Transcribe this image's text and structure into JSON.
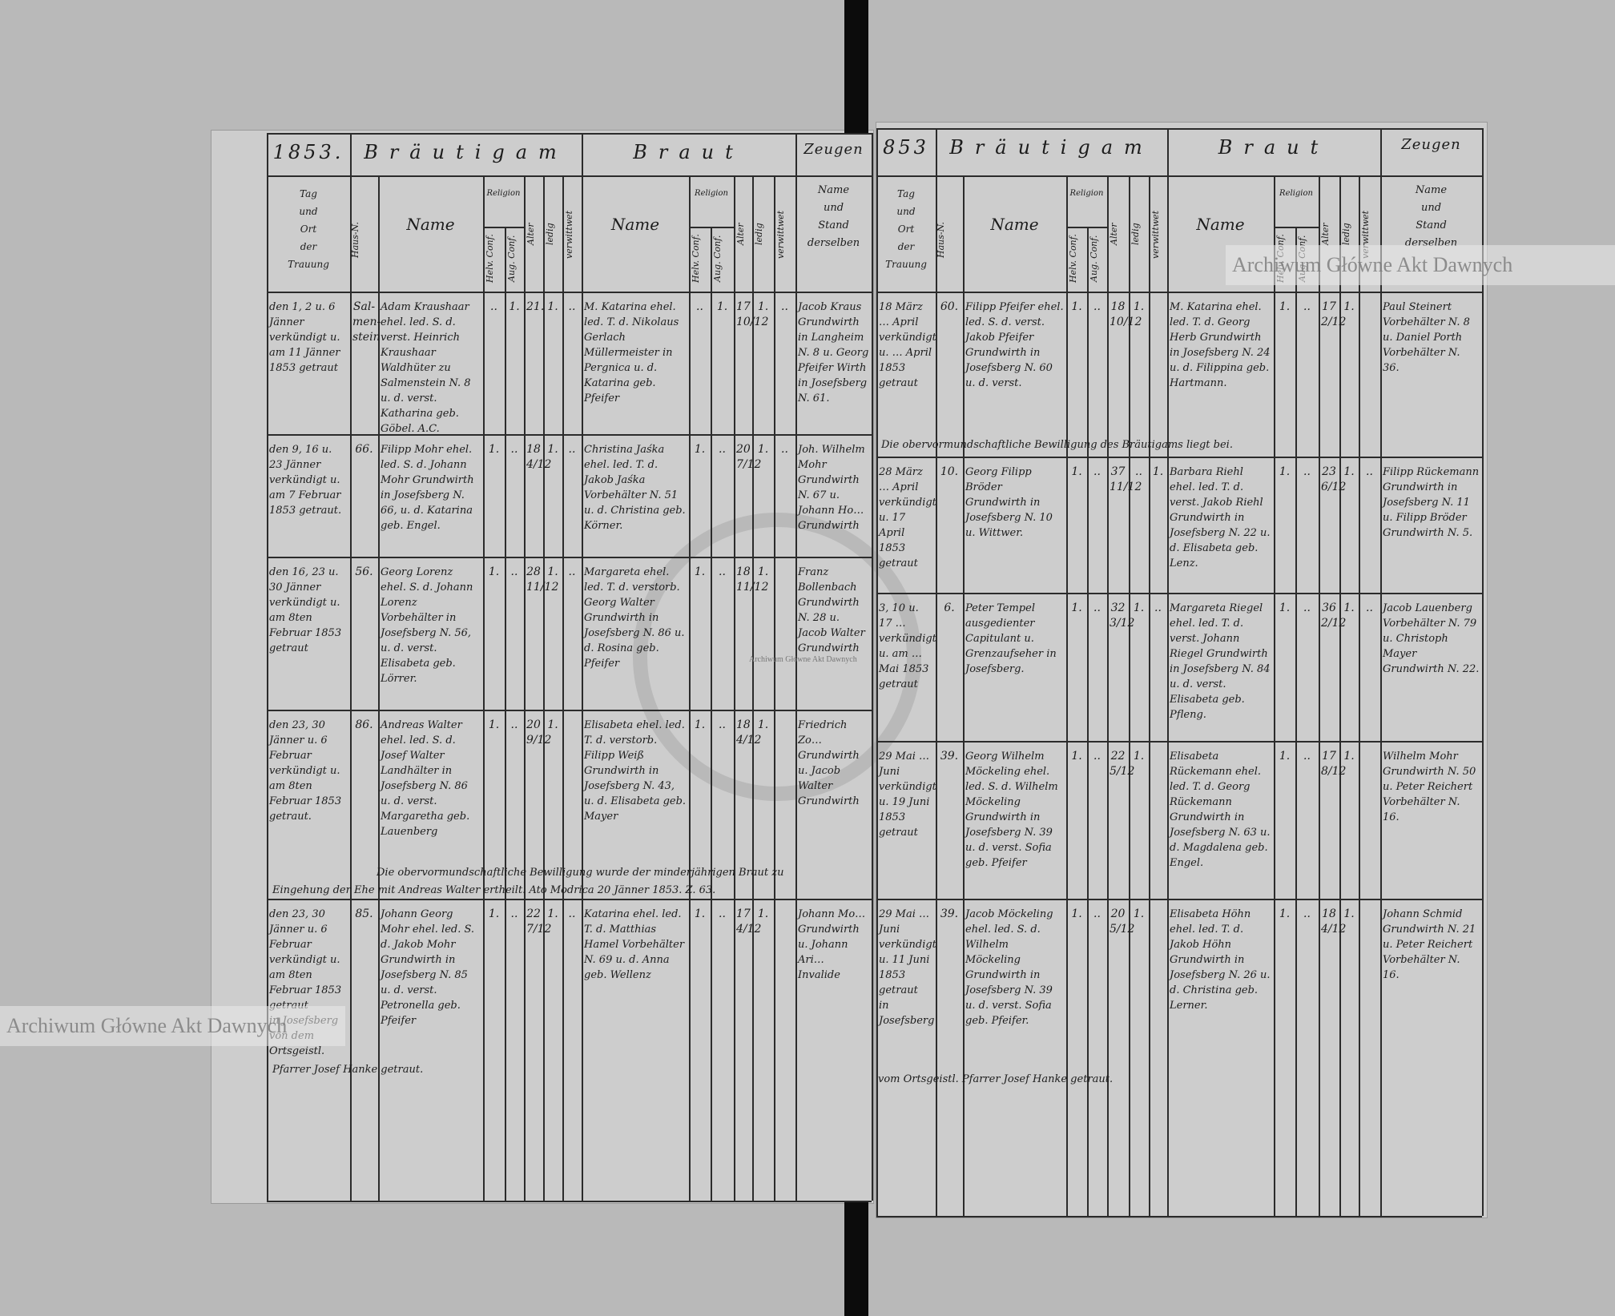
{
  "watermark": "Archiwum Główne Akt Dawnych",
  "headers": {
    "year": "1853.",
    "year_right": "853",
    "groom": "Bräutigam",
    "bride": "Braut",
    "witnesses": "Zeugen",
    "date_place": "Tag\nund\nOrt\nder\nTrauung",
    "house_no": "Haus-N.",
    "name": "Name",
    "religion": "Religion",
    "helv_conf": "Helv. Conf.",
    "aug_conf": "Aug. Conf.",
    "age": "Alter",
    "single": "ledig",
    "widowed": "verwittwet",
    "witness_sub": "Name\nund\nStand\nderselben"
  },
  "pages": [
    {
      "rows": [
        {
          "date": "den 1, 2 u. 6 Jänner verkündigt u. am 11 Jänner 1853 getraut",
          "house": "Sal-\nmen-\nstein",
          "g_name": "Adam Kraushaar ehel. led. S. d. verst. Heinrich Kraushaar Waldhüter zu Salmenstein N. 8 u. d. verst. Katharina geb. Göbel. A.C.",
          "g_kath": "..",
          "g_augs": "1.",
          "g_age": "21.",
          "g_single": "1.",
          "g_widowed": "..",
          "b_name": "M. Katarina ehel. led. T. d. Nikolaus Gerlach Müllermeister in Pergnica u. d. Katarina geb. Pfeifer",
          "b_kath": "..",
          "b_augs": "1.",
          "b_age": "17\n10/12",
          "b_single": "1.",
          "b_widowed": "..",
          "witnesses": "Jacob Kraus Grundwirth in Langheim N. 8 u. Georg Pfeifer Wirth in Josefsberg N. 61."
        },
        {
          "date": "den 9, 16 u. 23 Jänner verkündigt u. am 7 Februar 1853 getraut.",
          "house": "66.",
          "g_name": "Filipp Mohr ehel. led. S. d. Johann Mohr Grundwirth in Josefsberg N. 66, u. d. Katarina geb. Engel.",
          "g_kath": "1.",
          "g_augs": "..",
          "g_age": "18\n4/12",
          "g_single": "1.",
          "g_widowed": "..",
          "b_name": "Christina Jaśka ehel. led. T. d. Jakob Jaśka Vorbehälter N. 51 u. d. Christina geb. Körner.",
          "b_kath": "1.",
          "b_augs": "..",
          "b_age": "20\n7/12",
          "b_single": "1.",
          "b_widowed": "..",
          "witnesses": "Joh. Wilhelm Mohr Grundwirth N. 67 u. Johann Ho… Grundwirth"
        },
        {
          "date": "den 16, 23 u. 30 Jänner verkündigt u. am 8ten Februar 1853 getraut",
          "house": "56.",
          "g_name": "Georg Lorenz ehel. S. d. Johann Lorenz Vorbehälter in Josefsberg N. 56, u. d. verst. Elisabeta geb. Lörrer.",
          "g_kath": "1.",
          "g_augs": "..",
          "g_age": "28\n11/12",
          "g_single": "1.",
          "g_widowed": "..",
          "b_name": "Margareta ehel. led. T. d. verstorb. Georg Walter Grundwirth in Josefsberg N. 86 u. d. Rosina geb. Pfeifer",
          "b_kath": "1.",
          "b_augs": "..",
          "b_age": "18\n11/12",
          "b_single": "1.",
          "b_widowed": "",
          "witnesses": "Franz Bollenbach Grundwirth N. 28 u. Jacob Walter Grundwirth"
        },
        {
          "date": "den 23, 30 Jänner u. 6 Februar verkündigt u. am 8ten Februar 1853 getraut.",
          "house": "86.",
          "g_name": "Andreas Walter ehel. led. S. d. Josef Walter Landhälter in Josefsberg N. 86 u. d. verst. Margaretha geb. Lauenberg",
          "g_kath": "1.",
          "g_augs": "..",
          "g_age": "20\n9/12",
          "g_single": "1.",
          "g_widowed": "",
          "b_name": "Elisabeta ehel. led. T. d. verstorb. Filipp Weiß Grundwirth in Josefsberg N. 43, u. d. Elisabeta geb. Mayer",
          "b_kath": "1.",
          "b_augs": "..",
          "b_age": "18\n4/12",
          "b_single": "1.",
          "b_widowed": "",
          "witnesses": "Friedrich Zo… Grundwirth u. Jacob Walter Grundwirth"
        },
        {
          "date": "den 23, 30 Jänner u. 6 Februar verkündigt u. am 8ten Februar 1853 getraut\nin Josefsberg von dem Ortsgeistl.",
          "house": "85.",
          "g_name": "Johann Georg Mohr ehel. led. S. d. Jakob Mohr Grundwirth in Josefsberg N. 85 u. d. verst. Petronella geb. Pfeifer",
          "g_kath": "1.",
          "g_augs": "..",
          "g_age": "22\n7/12",
          "g_single": "1.",
          "g_widowed": "..",
          "b_name": "Katarina ehel. led. T. d. Matthias Hamel Vorbehälter N. 69 u. d. Anna geb. Wellenz",
          "b_kath": "1.",
          "b_augs": "..",
          "b_age": "17\n4/12",
          "b_single": "1.",
          "b_widowed": "",
          "witnesses": "Johann Mo… Grundwirth u. Johann Ari… Invalide"
        }
      ],
      "notes": [
        "Die obervormundschaftliche Bewilligung wurde der minderjährigen Braut zu",
        "Eingehung der Ehe mit Andreas Walter ertheilt. Ato Modrica 20 Jänner 1853. Z. 63.",
        "Pfarrer Josef Hanke getraut."
      ]
    },
    {
      "rows": [
        {
          "date": "18 März … April verkündigt u. … April 1853 getraut",
          "house": "60.",
          "g_name": "Filipp Pfeifer ehel. led. S. d. verst. Jakob Pfeifer Grundwirth in Josefsberg N. 60 u. d. verst.",
          "g_kath": "1.",
          "g_augs": "..",
          "g_age": "18\n10/12",
          "g_single": "1.",
          "g_widowed": "",
          "b_name": "M. Katarina ehel. led. T. d. Georg Herb Grundwirth in Josefsberg N. 24 u. d. Filippina geb. Hartmann.",
          "b_kath": "1.",
          "b_augs": "..",
          "b_age": "17\n2/12",
          "b_single": "1.",
          "b_widowed": "",
          "witnesses": "Paul Steinert Vorbehälter N. 8 u. Daniel Porth Vorbehälter N. 36."
        },
        {
          "date": "28 März … April verkündigt u. 17 April 1853 getraut",
          "house": "10.",
          "g_name": "Georg Filipp Bröder Grundwirth in Josefsberg N. 10 u. Wittwer.",
          "g_kath": "1.",
          "g_augs": "..",
          "g_age": "37\n11/12",
          "g_single": "..",
          "g_widowed": "1.",
          "b_name": "Barbara Riehl ehel. led. T. d. verst. Jakob Riehl Grundwirth in Josefsberg N. 22 u. d. Elisabeta geb. Lenz.",
          "b_kath": "1.",
          "b_augs": "..",
          "b_age": "23\n6/12",
          "b_single": "1.",
          "b_widowed": "..",
          "witnesses": "Filipp Rückemann Grundwirth in Josefsberg N. 11 u. Filipp Bröder Grundwirth N. 5."
        },
        {
          "date": "3, 10 u. 17 … verkündigt u. am … Mai 1853 getraut",
          "house": "6.",
          "g_name": "Peter Tempel ausgedienter Capitulant u. Grenzaufseher in Josefsberg.",
          "g_kath": "1.",
          "g_augs": "..",
          "g_age": "32\n3/12",
          "g_single": "1.",
          "g_widowed": "..",
          "b_name": "Margareta Riegel ehel. led. T. d. verst. Johann Riegel Grundwirth in Josefsberg N. 84 u. d. verst. Elisabeta geb. Pfleng.",
          "b_kath": "1.",
          "b_augs": "..",
          "b_age": "36\n2/12",
          "b_single": "1.",
          "b_widowed": "..",
          "witnesses": "Jacob Lauenberg Vorbehälter N. 79 u. Christoph Mayer Grundwirth N. 22."
        },
        {
          "date": "29 Mai … Juni verkündigt u. 19 Juni 1853 getraut",
          "house": "39.",
          "g_name": "Georg Wilhelm Möckeling ehel. led. S. d. Wilhelm Möckeling Grundwirth in Josefsberg N. 39 u. d. verst. Sofia geb. Pfeifer",
          "g_kath": "1.",
          "g_augs": "..",
          "g_age": "22\n5/12",
          "g_single": "1.",
          "g_widowed": "",
          "b_name": "Elisabeta Rückemann ehel. led. T. d. Georg Rückemann Grundwirth in Josefsberg N. 63 u. d. Magdalena geb. Engel.",
          "b_kath": "1.",
          "b_augs": "..",
          "b_age": "17\n8/12",
          "b_single": "1.",
          "b_widowed": "",
          "witnesses": "Wilhelm Mohr Grundwirth N. 50 u. Peter Reichert Vorbehälter N. 16."
        },
        {
          "date": "29 Mai … Juni verkündigt u. 11 Juni 1853 getraut\nin Josefsberg",
          "house": "39.",
          "g_name": "Jacob Möckeling ehel. led. S. d. Wilhelm Möckeling Grundwirth in Josefsberg N. 39 u. d. verst. Sofia geb. Pfeifer.",
          "g_kath": "1.",
          "g_augs": "..",
          "g_age": "20\n5/12",
          "g_single": "1.",
          "g_widowed": "",
          "b_name": "Elisabeta Höhn ehel. led. T. d. Jakob Höhn Grundwirth in Josefsberg N. 26 u. d. Christina geb. Lerner.",
          "b_kath": "1.",
          "b_augs": "..",
          "b_age": "18\n4/12",
          "b_single": "1.",
          "b_widowed": "",
          "witnesses": "Johann Schmid Grundwirth N. 21 u. Peter Reichert Vorbehälter N. 16."
        }
      ],
      "notes": [
        "Die obervormundschaftliche Bewilligung des Bräutigams liegt bei.",
        "vom Ortsgeistl. Pfarrer Josef Hanke getraut."
      ]
    }
  ]
}
